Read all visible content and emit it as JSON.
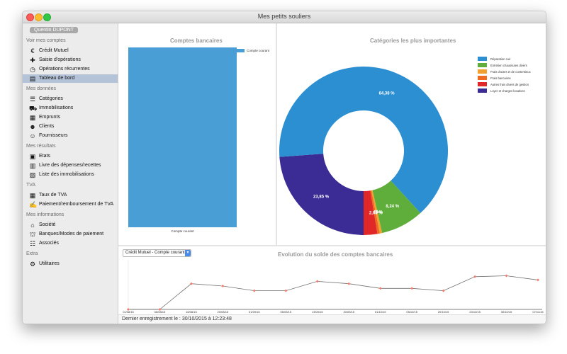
{
  "window": {
    "title": "Mes petits souliers"
  },
  "user": {
    "name": "Quentin DUPONT"
  },
  "sidebar": {
    "sections": [
      {
        "title": "Voir mes comptes",
        "items": [
          {
            "label": "Crédit Mutuel",
            "icon": "euro-icon"
          },
          {
            "label": "Saisie d'opérations",
            "icon": "plus-icon"
          },
          {
            "label": "Opérations récurrentes",
            "icon": "clock-icon"
          },
          {
            "label": "Tableau de bord",
            "icon": "dashboard-icon",
            "selected": true
          }
        ]
      },
      {
        "title": "Mes données",
        "items": [
          {
            "label": "Catégories",
            "icon": "categories-icon"
          },
          {
            "label": "Immobilisations",
            "icon": "car-icon"
          },
          {
            "label": "Emprunts",
            "icon": "loan-icon"
          },
          {
            "label": "Clients",
            "icon": "client-icon"
          },
          {
            "label": "Fournisseurs",
            "icon": "supplier-icon"
          }
        ]
      },
      {
        "title": "Mes résultats",
        "items": [
          {
            "label": "Etats",
            "icon": "report-icon"
          },
          {
            "label": "Livre des dépenses/recettes",
            "icon": "book-icon"
          },
          {
            "label": "Liste des immobilisations",
            "icon": "list-icon"
          }
        ]
      },
      {
        "title": "TVA",
        "items": [
          {
            "label": "Taux de TVA",
            "icon": "calculator-icon"
          },
          {
            "label": "Paiement/remboursement de TVA",
            "icon": "payment-icon"
          }
        ]
      },
      {
        "title": "Mes informations",
        "items": [
          {
            "label": "Société",
            "icon": "house-icon"
          },
          {
            "label": "Banques/Modes de paiement",
            "icon": "bank-icon"
          },
          {
            "label": "Associés",
            "icon": "people-icon"
          }
        ]
      },
      {
        "title": "Extra",
        "items": [
          {
            "label": "Utilitaires",
            "icon": "gear-icon"
          }
        ]
      }
    ]
  },
  "colors": {
    "bar": "#4a9ed6",
    "accent": "#4a8ae8",
    "line": "#707070",
    "marker": "#f37c70"
  },
  "chart_data": [
    {
      "type": "bar",
      "title": "Comptes bancaires",
      "categories": [
        "Compte courant"
      ],
      "series": [
        {
          "name": "Compte courant",
          "values": [
            100
          ]
        }
      ],
      "legend": "top-right"
    },
    {
      "type": "pie",
      "title": "Catégories les plus importantes",
      "legend": "right",
      "labels": [
        "Réparation cuir",
        "Entretien chaussures divers",
        "Frais d'actes et de contentieux",
        "Frais bancaires",
        "Autres frais divers de gestion",
        "Loyer et charges locatives"
      ],
      "values": [
        64.38,
        8.24,
        0.45,
        0.45,
        2.63,
        23.85
      ],
      "data_labels": [
        "64,38 %",
        "8,24 %",
        "0,45 %",
        "0,45 %",
        "2,63 %",
        "23,85 %"
      ],
      "colors": [
        "#2b8fd2",
        "#5fae3c",
        "#f0a12e",
        "#f06a20",
        "#e12828",
        "#3a2c94"
      ]
    },
    {
      "type": "line",
      "title": "Evolution du solde des comptes bancaires",
      "x": [
        "01/08/15",
        "05/08/15",
        "16/08/15",
        "20/08/15",
        "01/09/15",
        "05/09/15",
        "13/09/15",
        "20/09/15",
        "01/10/15",
        "05/10/15",
        "20/10/15",
        "23/10/15",
        "30/10/15",
        "07/11/15"
      ],
      "series": [
        {
          "values": [
            0,
            0,
            55,
            50,
            40,
            40,
            60,
            55,
            45,
            45,
            40,
            70,
            72,
            63
          ]
        }
      ],
      "ylim": [
        0,
        100
      ]
    }
  ],
  "account_select": {
    "value": "Crédit Mutuel - Compte courant"
  },
  "status": {
    "text": "Dernier enregistrement le : 30/10/2015 à 12:23:48"
  }
}
